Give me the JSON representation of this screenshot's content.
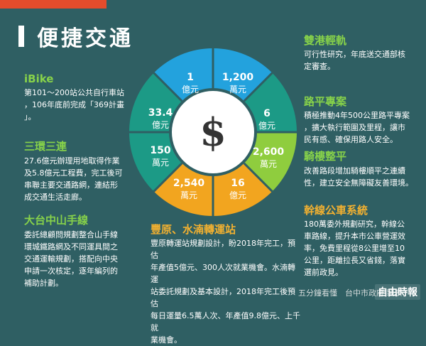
{
  "title": "便捷交通",
  "ring_values": {
    "v1": {
      "num": "1",
      "unit": "億元"
    },
    "v2": {
      "num": "1,200",
      "unit": "萬元"
    },
    "v3": {
      "num": "6",
      "unit": "億元"
    },
    "v4": {
      "num": "2,600",
      "unit": "萬元"
    },
    "v5": {
      "num": "16",
      "unit": "億元"
    },
    "v6": {
      "num": "2,540",
      "unit": "萬元"
    },
    "v7": {
      "num": "150",
      "unit": "萬元"
    },
    "v8": {
      "num": "33.4",
      "unit": "億元"
    }
  },
  "center_symbol": "$",
  "sections": {
    "ibike": {
      "heading": "iBike",
      "lines": [
        "第101～200站公共自行車站",
        "，106年底前完成「369計畫",
        "」。"
      ]
    },
    "ring": {
      "heading": "三環三連",
      "lines": [
        "27.6億元辦理用地取得作業",
        "及5.8億元工程費，完工後可",
        "串聯主要交通路網，連結形",
        "成交通生活走廊。"
      ]
    },
    "mrt": {
      "heading": "大台中山手線",
      "lines": [
        "委託總顧問規劃整合山手線",
        "環城鐵路網及不同運具間之",
        "交通運輸規劃，搭配向中央",
        "申請一次核定，逐年編列的",
        "補助計劃。"
      ]
    },
    "lrt": {
      "heading": "雙港輕軌",
      "lines": [
        "可行性研究，年底送交通部核",
        "定審查。"
      ]
    },
    "road": {
      "heading": "路平專案",
      "lines": [
        "積極推動4年500公里路平專案",
        "，擴大執行範圍及里程，讓市",
        "民有感、確保用路人安全。"
      ]
    },
    "arcade": {
      "heading": "騎樓整平",
      "lines": [
        "改善路段增加騎樓順平之連續",
        "性，建立安全無障礙友善環境。"
      ]
    },
    "bus": {
      "heading": "幹線公車系統",
      "lines": [
        "180萬委外規劃研究，幹線公",
        "車路線，提升本市公車營運效",
        "率，免費里程從8公里增至10",
        "公里，距離拉長又省錢，落實",
        "選前政見。"
      ]
    },
    "transfer": {
      "heading": "豐原、水湳轉運站",
      "lines": [
        "豐原轉運站規劃設計，盼2018年完工，預估",
        "年產值5億元、300人次就業機會。水湳轉運",
        "站委託規劃及基本設計，2018年完工後預估",
        "每日運量6.5萬人次、年產值9.8億元、上千就",
        "業機會。"
      ]
    }
  },
  "footer": {
    "credit": "五分鐘看懂",
    "source": "台中市政府 製表"
  },
  "logo": "自由時報",
  "colors": {
    "background": "#2f5f63",
    "teal": "#1c9a86",
    "blue": "#23a2dd",
    "green": "#8fcd3e",
    "orange": "#f2a51f",
    "accent_red": "#e54c2c"
  }
}
